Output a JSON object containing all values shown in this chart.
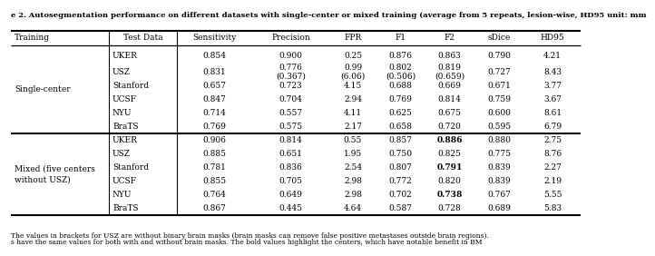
{
  "title": "e 2. Autosegmentation performance on different datasets with single-center or mixed training (average from 5 repeats, lesion-wise, HD95 unit: mm",
  "col_headers": [
    "Training",
    "Test Data",
    "Sensitivity",
    "Precision",
    "FPR",
    "F1",
    "F2",
    "sDice",
    "HD95"
  ],
  "rows": [
    {
      "group": "Single-center",
      "test": "UKER",
      "sens": "0.854",
      "prec": "0.900",
      "fpr": "0.25",
      "f1": "0.876",
      "f2": "0.863",
      "sdice": "0.790",
      "hd95": "4.21",
      "bold_f2": false,
      "prec2": "",
      "fpr2": "",
      "f12": "",
      "f22": ""
    },
    {
      "group": "Single-center",
      "test": "USZ",
      "sens": "0.831",
      "prec": "0.776",
      "fpr": "0.99",
      "f1": "0.802",
      "f2": "0.819",
      "sdice": "0.727",
      "hd95": "8.43",
      "bold_f2": false,
      "prec2": "(0.367)",
      "fpr2": "(6.06)",
      "f12": "(0.506)",
      "f22": "(0.659)"
    },
    {
      "group": "Single-center",
      "test": "Stanford",
      "sens": "0.657",
      "prec": "0.723",
      "fpr": "4.15",
      "f1": "0.688",
      "f2": "0.669",
      "sdice": "0.671",
      "hd95": "3.77",
      "bold_f2": false,
      "prec2": "",
      "fpr2": "",
      "f12": "",
      "f22": ""
    },
    {
      "group": "Single-center",
      "test": "UCSF",
      "sens": "0.847",
      "prec": "0.704",
      "fpr": "2.94",
      "f1": "0.769",
      "f2": "0.814",
      "sdice": "0.759",
      "hd95": "3.67",
      "bold_f2": false,
      "prec2": "",
      "fpr2": "",
      "f12": "",
      "f22": ""
    },
    {
      "group": "Single-center",
      "test": "NYU",
      "sens": "0.714",
      "prec": "0.557",
      "fpr": "4.11",
      "f1": "0.625",
      "f2": "0.675",
      "sdice": "0.600",
      "hd95": "8.61",
      "bold_f2": false,
      "prec2": "",
      "fpr2": "",
      "f12": "",
      "f22": ""
    },
    {
      "group": "Single-center",
      "test": "BraTS",
      "sens": "0.769",
      "prec": "0.575",
      "fpr": "2.17",
      "f1": "0.658",
      "f2": "0.720",
      "sdice": "0.595",
      "hd95": "6.79",
      "bold_f2": false,
      "prec2": "",
      "fpr2": "",
      "f12": "",
      "f22": ""
    },
    {
      "group": "Mixed",
      "test": "UKER",
      "sens": "0.906",
      "prec": "0.814",
      "fpr": "0.55",
      "f1": "0.857",
      "f2": "0.886",
      "sdice": "0.880",
      "hd95": "2.75",
      "bold_f2": true,
      "prec2": "",
      "fpr2": "",
      "f12": "",
      "f22": ""
    },
    {
      "group": "Mixed",
      "test": "USZ",
      "sens": "0.885",
      "prec": "0.651",
      "fpr": "1.95",
      "f1": "0.750",
      "f2": "0.825",
      "sdice": "0.775",
      "hd95": "8.76",
      "bold_f2": false,
      "prec2": "",
      "fpr2": "",
      "f12": "",
      "f22": ""
    },
    {
      "group": "Mixed",
      "test": "Stanford",
      "sens": "0.781",
      "prec": "0.836",
      "fpr": "2.54",
      "f1": "0.807",
      "f2": "0.791",
      "sdice": "0.839",
      "hd95": "2.27",
      "bold_f2": true,
      "prec2": "",
      "fpr2": "",
      "f12": "",
      "f22": ""
    },
    {
      "group": "Mixed",
      "test": "UCSF",
      "sens": "0.855",
      "prec": "0.705",
      "fpr": "2.98",
      "f1": "0.772",
      "f2": "0.820",
      "sdice": "0.839",
      "hd95": "2.19",
      "bold_f2": false,
      "prec2": "",
      "fpr2": "",
      "f12": "",
      "f22": ""
    },
    {
      "group": "Mixed",
      "test": "NYU",
      "sens": "0.764",
      "prec": "0.649",
      "fpr": "2.98",
      "f1": "0.702",
      "f2": "0.738",
      "sdice": "0.767",
      "hd95": "5.55",
      "bold_f2": true,
      "prec2": "",
      "fpr2": "",
      "f12": "",
      "f22": ""
    },
    {
      "group": "Mixed",
      "test": "BraTS",
      "sens": "0.867",
      "prec": "0.445",
      "fpr": "4.64",
      "f1": "0.587",
      "f2": "0.728",
      "sdice": "0.689",
      "hd95": "5.83",
      "bold_f2": false,
      "prec2": "",
      "fpr2": "",
      "f12": "",
      "f22": ""
    }
  ],
  "footnote1": "The values in brackets for USZ are without binary brain masks (brain masks can remove false positive metastases outside brain regions).",
  "footnote2": "s have the same values for both with and without brain masks. The bold values highlight the centers, which have notable benefit in BM",
  "training_labels": {
    "Single-center": "Single-center",
    "Mixed": "Mixed (five centers\nwithout USZ)"
  }
}
